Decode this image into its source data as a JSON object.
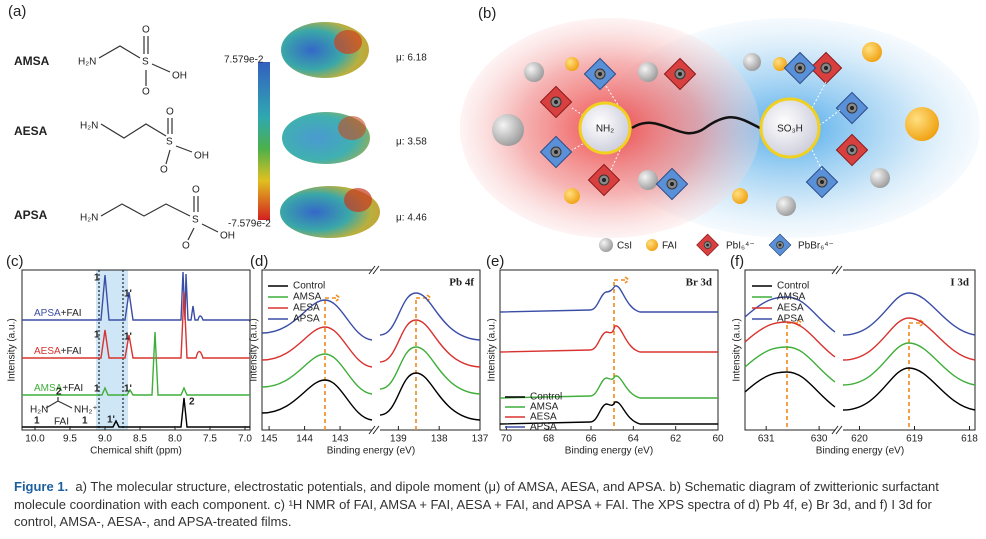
{
  "panel_a": {
    "label": "(a)",
    "scale_max": "7.579e-2",
    "scale_min": "-7.579e-2",
    "molecules": [
      {
        "name": "AMSA",
        "amine": "H₂N",
        "sulfur": "S",
        "oxygen_top": "O",
        "oxygen_bottom": "O",
        "hydroxyl": "OH",
        "dipole": "μ: 6.18"
      },
      {
        "name": "AESA",
        "amine": "H₂N",
        "sulfur": "S",
        "oxygen_top": "O",
        "oxygen_bottom": "O",
        "hydroxyl": "OH",
        "dipole": "μ: 3.58"
      },
      {
        "name": "APSA",
        "amine": "H₂N",
        "sulfur": "S",
        "oxygen_top": "O",
        "oxygen_bottom": "O",
        "hydroxyl": "OH",
        "dipole": "μ: 4.46"
      }
    ]
  },
  "panel_b": {
    "label": "(b)",
    "amine": "NH₂",
    "sulfonic": "SO₃H",
    "legend": [
      "CsI",
      "FAI",
      "PbI₆⁴⁻",
      "PbBr₆⁴⁻"
    ]
  },
  "panel_c": {
    "label": "(c)",
    "type": "line",
    "xlabel": "Chemical shift (ppm)",
    "ylabel": "Intensity (a.u.)",
    "xlim": [
      10,
      7
    ],
    "xticks": [
      {
        "value": 10,
        "label": "10.0"
      },
      {
        "value": 9.5,
        "label": "9.5"
      },
      {
        "value": 9,
        "label": "9.0"
      },
      {
        "value": 8.5,
        "label": "8.5"
      },
      {
        "value": 8,
        "label": "8.0"
      },
      {
        "value": 7.5,
        "label": "7.5"
      },
      {
        "value": 7,
        "label": "7.0"
      }
    ],
    "series": [
      {
        "name": "APSA",
        "suffix": "+FAI",
        "color": "#3b4ea6"
      },
      {
        "name": "AESA",
        "suffix": "+FAI",
        "color": "#d8332f"
      },
      {
        "name": "AMSA",
        "suffix": "+FAI",
        "color": "#3fae3a"
      },
      {
        "name": "FAI",
        "color": "#000000"
      }
    ],
    "peak_labels": [
      "1",
      "1'",
      "2"
    ],
    "fai_structure": {
      "left": "H₂N",
      "right": "NH₂⁺",
      "name": "FAI",
      "label_1": "1",
      "label_2": "2"
    }
  },
  "panel_d": {
    "label": "(d)",
    "type": "line",
    "title": "Pb 4f",
    "xlabel": "Binding energy (eV)",
    "ylabel": "Intensity (a.u.)",
    "segments": [
      {
        "xlim": [
          145.2,
          142.1
        ],
        "xticks": [
          145,
          144,
          143
        ]
      },
      {
        "xlim": [
          139.45,
          137
        ],
        "xticks": [
          139,
          138,
          137
        ]
      }
    ],
    "series": [
      {
        "name": "Control",
        "color": "#000000"
      },
      {
        "name": "AMSA",
        "color": "#3fae3a"
      },
      {
        "name": "AESA",
        "color": "#d8332f"
      },
      {
        "name": "APSA",
        "color": "#3b4ea6"
      }
    ]
  },
  "panel_e": {
    "label": "(e)",
    "type": "line",
    "title": "Br 3d",
    "xlabel": "Binding energy (eV)",
    "ylabel": "Intensity (a.u.)",
    "xlim": [
      70.3,
      60
    ],
    "xticks": [
      70,
      68,
      66,
      64,
      62,
      60
    ],
    "series": [
      {
        "name": "Control",
        "color": "#000000"
      },
      {
        "name": "AMSA",
        "color": "#3fae3a"
      },
      {
        "name": "AESA",
        "color": "#d8332f"
      },
      {
        "name": "APSA",
        "color": "#3b4ea6"
      }
    ]
  },
  "panel_f": {
    "label": "(f)",
    "type": "line",
    "title": "I 3d",
    "xlabel": "Binding energy (eV)",
    "ylabel": "Intensity (a.u.)",
    "segments": [
      {
        "xlim": [
          631.4,
          629.7
        ],
        "xticks": [
          631,
          630
        ]
      },
      {
        "xlim": [
          620.3,
          617.9
        ],
        "xticks": [
          620,
          619,
          618
        ]
      }
    ],
    "series": [
      {
        "name": "Control",
        "color": "#000000"
      },
      {
        "name": "AMSA",
        "color": "#3fae3a"
      },
      {
        "name": "AESA",
        "color": "#d8332f"
      },
      {
        "name": "APSA",
        "color": "#3b4ea6"
      }
    ]
  },
  "caption": {
    "label": "Figure 1.",
    "text": "a) The molecular structure, electrostatic potentials, and dipole moment (μ) of AMSA, AESA, and APSA. b) Schematic diagram of zwitterionic surfactant molecule coordination with each component. c) ¹H NMR of FAI, AMSA + FAI, AESA + FAI, and APSA + FAI. The XPS spectra of d) Pb 4f, e) Br 3d, and f) I 3d for control, AMSA-, AESA-, and APSA-treated films."
  }
}
